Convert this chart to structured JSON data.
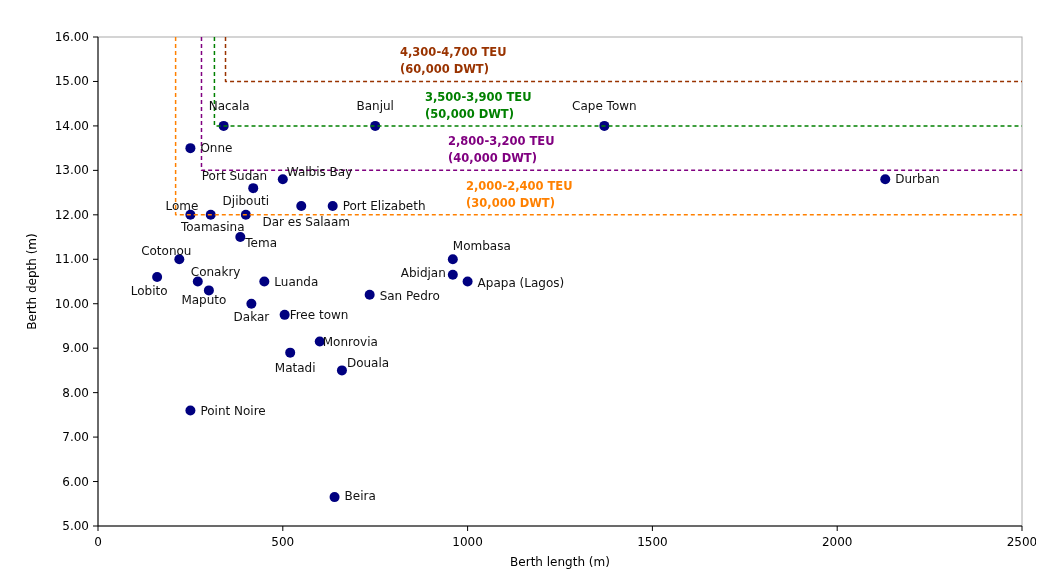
{
  "chart_data": {
    "type": "scatter",
    "xlabel": "Berth length (m)",
    "ylabel": "Berth depth (m)",
    "xlim": [
      0,
      2500
    ],
    "xticks": [
      0,
      500,
      1000,
      1500,
      2000,
      2500
    ],
    "ylim": [
      5,
      16
    ],
    "yticks": [
      {
        "value": 5,
        "label": "5.00"
      },
      {
        "value": 6,
        "label": "6.00"
      },
      {
        "value": 7,
        "label": "7.00"
      },
      {
        "value": 8,
        "label": "8.00"
      },
      {
        "value": 9,
        "label": "9.00"
      },
      {
        "value": 10,
        "label": "10.00"
      },
      {
        "value": 11,
        "label": "11.00"
      },
      {
        "value": 12,
        "label": "12.00"
      },
      {
        "value": 13,
        "label": "13.00"
      },
      {
        "value": 14,
        "label": "14.00"
      },
      {
        "value": 15,
        "label": "15.00"
      },
      {
        "value": 16,
        "label": "16.00"
      }
    ],
    "grid": false,
    "marker": "circle",
    "series": [
      {
        "color": "#000080",
        "x": [
          340,
          750,
          1370,
          250,
          420,
          500,
          550,
          635,
          2130,
          250,
          305,
          400,
          385,
          220,
          160,
          270,
          300,
          450,
          415,
          505,
          600,
          520,
          660,
          250,
          640,
          735,
          960,
          960,
          1000
        ],
        "values": [
          14,
          14,
          14,
          13.5,
          12.6,
          12.8,
          12.2,
          12.2,
          12.8,
          12,
          12,
          12,
          11.5,
          11,
          10.6,
          10.5,
          10.3,
          10.5,
          10,
          9.75,
          9.15,
          8.9,
          8.5,
          7.6,
          5.65,
          10.2,
          11,
          10.65,
          10.5
        ]
      },
      {
        "type": "line",
        "name": "2,000-2,400 TEU\n(30,000 DWT)",
        "color": "#ff8000",
        "line_style": "dashed",
        "marker": "none",
        "x": [
          210,
          210,
          2500
        ],
        "values": [
          16,
          12,
          12
        ]
      },
      {
        "type": "line",
        "name": "2,800-3,200 TEU\n(40,000 DWT)",
        "color": "#800080",
        "line_style": "dashed",
        "marker": "none",
        "x": [
          280,
          280,
          2500
        ],
        "values": [
          16,
          13,
          13
        ]
      },
      {
        "type": "line",
        "name": "3,500-3,900 TEU\n(50,000 DWT)",
        "color": "#008000",
        "line_style": "dashed",
        "marker": "none",
        "x": [
          315,
          315,
          2500
        ],
        "values": [
          16,
          14,
          14
        ]
      },
      {
        "type": "line",
        "name": "4,300-4,700 TEU\n(60,000 DWT)",
        "color": "#993300",
        "line_style": "dashed",
        "marker": "none",
        "x": [
          345,
          345,
          2500
        ],
        "values": [
          16,
          15,
          15
        ]
      }
    ],
    "annotations": [
      {
        "text": "Nacala",
        "x": 340,
        "y": 14
      },
      {
        "text": "Banjul",
        "x": 750,
        "y": 14
      },
      {
        "text": "Cape Town",
        "x": 1370,
        "y": 14
      },
      {
        "text": "Onne",
        "x": 250,
        "y": 13.5
      },
      {
        "text": "Port Sudan",
        "x": 420,
        "y": 12.6
      },
      {
        "text": "Walbis Bay",
        "x": 500,
        "y": 12.8
      },
      {
        "text": "Dar es Salaam",
        "x": 550,
        "y": 12.2
      },
      {
        "text": "Port Elizabeth",
        "x": 635,
        "y": 12.2
      },
      {
        "text": "Durban",
        "x": 2130,
        "y": 12.8
      },
      {
        "text": "Lome",
        "x": 250,
        "y": 12
      },
      {
        "text": "Toamasina",
        "x": 305,
        "y": 12
      },
      {
        "text": "Djibouti",
        "x": 400,
        "y": 12
      },
      {
        "text": "Tema",
        "x": 385,
        "y": 11.5
      },
      {
        "text": "Cotonou",
        "x": 220,
        "y": 11
      },
      {
        "text": "Lobito",
        "x": 160,
        "y": 10.6
      },
      {
        "text": "Conakry",
        "x": 270,
        "y": 10.5
      },
      {
        "text": "Maputo",
        "x": 300,
        "y": 10.3
      },
      {
        "text": "Luanda",
        "x": 450,
        "y": 10.5
      },
      {
        "text": "Dakar",
        "x": 415,
        "y": 10
      },
      {
        "text": "Free town",
        "x": 505,
        "y": 9.75
      },
      {
        "text": "Monrovia",
        "x": 600,
        "y": 9.15
      },
      {
        "text": "Matadi",
        "x": 520,
        "y": 8.9
      },
      {
        "text": "Douala",
        "x": 660,
        "y": 8.5
      },
      {
        "text": "Point Noire",
        "x": 250,
        "y": 7.6
      },
      {
        "text": "Beira",
        "x": 640,
        "y": 5.65
      },
      {
        "text": "San Pedro",
        "x": 735,
        "y": 10.2
      },
      {
        "text": "Mombasa",
        "x": 960,
        "y": 11
      },
      {
        "text": "Abidjan",
        "x": 960,
        "y": 10.65
      },
      {
        "text": "Apapa (Lagos)",
        "x": 1000,
        "y": 10.5
      }
    ]
  }
}
